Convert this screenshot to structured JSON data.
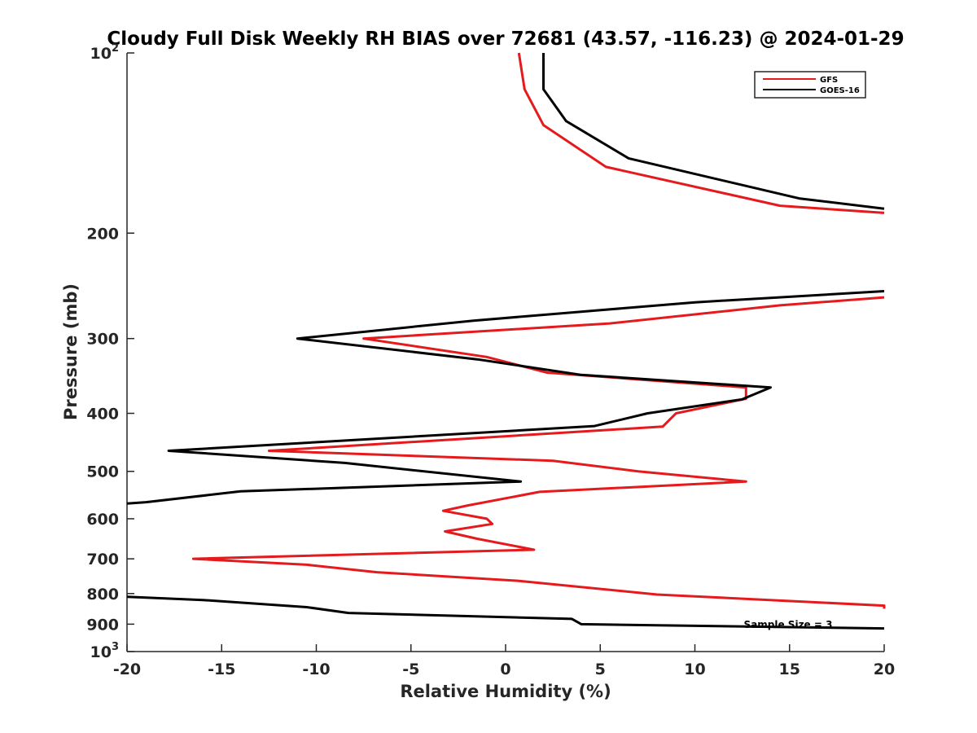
{
  "chart_data": {
    "type": "line",
    "title": "Cloudy Full Disk Weekly RH BIAS over 72681 (43.57, -116.23) @ 2024-01-29",
    "xlabel": "Relative Humidity (%)",
    "ylabel": "Pressure (mb)",
    "xlim": [
      -20,
      20
    ],
    "ylim": [
      100,
      1000
    ],
    "y_scale": "log",
    "y_reversed": true,
    "x_ticks": [
      "-20",
      "-15",
      "-10",
      "-5",
      "0",
      "5",
      "10",
      "15",
      "20"
    ],
    "y_ticks": [
      {
        "value": 100,
        "base": "10",
        "exp": "2"
      },
      {
        "value": 200,
        "base": "200",
        "exp": ""
      },
      {
        "value": 300,
        "base": "300",
        "exp": ""
      },
      {
        "value": 400,
        "base": "400",
        "exp": ""
      },
      {
        "value": 500,
        "base": "500",
        "exp": ""
      },
      {
        "value": 600,
        "base": "600",
        "exp": ""
      },
      {
        "value": 700,
        "base": "700",
        "exp": ""
      },
      {
        "value": 800,
        "base": "800",
        "exp": ""
      },
      {
        "value": 900,
        "base": "900",
        "exp": ""
      },
      {
        "value": 1000,
        "base": "10",
        "exp": "3"
      }
    ],
    "grid": false,
    "legend_position": "top-right",
    "annotation": "Sample Size = 3",
    "series": [
      {
        "name": "GFS",
        "color": "#e41a1c",
        "points": [
          [
            0.7,
            100
          ],
          [
            1.0,
            115
          ],
          [
            2.0,
            132
          ],
          [
            5.3,
            155
          ],
          [
            14.5,
            180
          ],
          [
            20,
            185
          ],
          [
            null,
            null
          ],
          [
            20,
            256
          ],
          [
            14.5,
            264
          ],
          [
            5.5,
            283
          ],
          [
            -7.5,
            300
          ],
          [
            -1.0,
            322
          ],
          [
            2.2,
            342
          ],
          [
            12.7,
            362
          ],
          [
            12.7,
            378
          ],
          [
            9.0,
            400
          ],
          [
            8.3,
            421
          ],
          [
            -12.5,
            462
          ],
          [
            2.5,
            480
          ],
          [
            7.0,
            500
          ],
          [
            12.7,
            520
          ],
          [
            1.8,
            541
          ],
          [
            -2.0,
            570
          ],
          [
            -3.3,
            582
          ],
          [
            -1.0,
            600
          ],
          [
            -0.7,
            612
          ],
          [
            -3.2,
            630
          ],
          [
            -1.5,
            648
          ],
          [
            1.5,
            676
          ],
          [
            -16.5,
            700
          ],
          [
            -10.5,
            716
          ],
          [
            -6.8,
            737
          ],
          [
            0.7,
            762
          ],
          [
            8.0,
            803
          ],
          [
            20,
            838
          ],
          [
            20,
            848
          ]
        ]
      },
      {
        "name": "GOES-16",
        "color": "#000000",
        "points": [
          [
            2.0,
            100
          ],
          [
            2.0,
            115
          ],
          [
            3.2,
            130
          ],
          [
            6.5,
            150
          ],
          [
            15.5,
            175
          ],
          [
            20,
            182
          ],
          [
            null,
            null
          ],
          [
            20,
            250
          ],
          [
            10.0,
            261
          ],
          [
            -1.7,
            280
          ],
          [
            -11.0,
            300
          ],
          [
            -1.5,
            325
          ],
          [
            4.0,
            345
          ],
          [
            14.0,
            362
          ],
          [
            12.5,
            379
          ],
          [
            7.5,
            400
          ],
          [
            4.7,
            420
          ],
          [
            -17.8,
            462
          ],
          [
            -8.5,
            484
          ],
          [
            0.8,
            520
          ],
          [
            -14.0,
            540
          ],
          [
            -19.0,
            563
          ],
          [
            -20,
            566
          ],
          [
            null,
            null
          ],
          [
            -20,
            810
          ],
          [
            -16.0,
            820
          ],
          [
            -10.5,
            843
          ],
          [
            -8.3,
            862
          ],
          [
            3.5,
            882
          ],
          [
            4.0,
            900
          ],
          [
            20,
            915
          ]
        ]
      }
    ]
  }
}
